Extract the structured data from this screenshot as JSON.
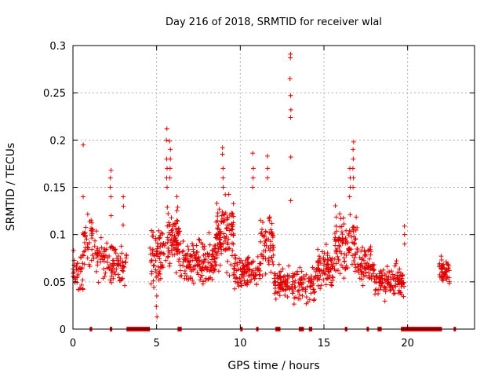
{
  "chart_data": {
    "type": "scatter",
    "title": "Day 216 of 2018, SRMTID for receiver wlal",
    "xlabel": "GPS time / hours",
    "ylabel": "SRMTID / TECUs",
    "xlim": [
      0,
      24
    ],
    "ylim": [
      0,
      0.3
    ],
    "x_ticks": [
      0,
      5,
      10,
      15,
      20
    ],
    "x_tick_labels": [
      "0",
      "5",
      "10",
      "15",
      "20"
    ],
    "y_ticks": [
      0,
      0.05,
      0.1,
      0.15,
      0.2,
      0.25,
      0.3
    ],
    "y_tick_labels": [
      "0",
      "0.05",
      "0.1",
      "0.15",
      "0.2",
      "0.25",
      "0.3"
    ],
    "grid": true,
    "marker": "+",
    "color": "#e00000",
    "clusters": [
      {
        "x": [
          0.0,
          0.6
        ],
        "y_base": 0.06,
        "y_spread": 0.03,
        "count": 40
      },
      {
        "x": [
          0.6,
          1.4
        ],
        "y_base": 0.09,
        "y_spread": 0.04,
        "count": 45
      },
      {
        "x": [
          1.4,
          2.2
        ],
        "y_base": 0.075,
        "y_spread": 0.03,
        "count": 40
      },
      {
        "x": [
          2.2,
          3.2
        ],
        "y_base": 0.07,
        "y_spread": 0.035,
        "count": 60
      },
      {
        "x": [
          4.6,
          5.6
        ],
        "y_base": 0.08,
        "y_spread": 0.04,
        "count": 70
      },
      {
        "x": [
          5.6,
          6.4
        ],
        "y_base": 0.1,
        "y_spread": 0.05,
        "count": 80
      },
      {
        "x": [
          6.4,
          8.5
        ],
        "y_base": 0.07,
        "y_spread": 0.035,
        "count": 150
      },
      {
        "x": [
          8.5,
          9.6
        ],
        "y_base": 0.1,
        "y_spread": 0.05,
        "count": 110
      },
      {
        "x": [
          9.6,
          11.2
        ],
        "y_base": 0.06,
        "y_spread": 0.025,
        "count": 110
      },
      {
        "x": [
          11.2,
          12.0
        ],
        "y_base": 0.09,
        "y_spread": 0.045,
        "count": 60
      },
      {
        "x": [
          12.0,
          13.2
        ],
        "y_base": 0.05,
        "y_spread": 0.025,
        "count": 80
      },
      {
        "x": [
          13.2,
          14.5
        ],
        "y_base": 0.045,
        "y_spread": 0.025,
        "count": 70
      },
      {
        "x": [
          14.5,
          15.6
        ],
        "y_base": 0.065,
        "y_spread": 0.03,
        "count": 80
      },
      {
        "x": [
          15.6,
          17.0
        ],
        "y_base": 0.09,
        "y_spread": 0.045,
        "count": 110
      },
      {
        "x": [
          17.0,
          18.0
        ],
        "y_base": 0.07,
        "y_spread": 0.03,
        "count": 70
      },
      {
        "x": [
          18.0,
          19.8
        ],
        "y_base": 0.05,
        "y_spread": 0.025,
        "count": 120
      },
      {
        "x": [
          21.9,
          22.5
        ],
        "y_base": 0.06,
        "y_spread": 0.02,
        "count": 50
      }
    ],
    "columns": [
      {
        "x": 0.6,
        "y": [
          0.195,
          0.14,
          0.1
        ]
      },
      {
        "x": 2.25,
        "y": [
          0.168,
          0.16,
          0.15,
          0.14,
          0.12
        ]
      },
      {
        "x": 3.0,
        "y": [
          0.14,
          0.13,
          0.11
        ]
      },
      {
        "x": 5.6,
        "y": [
          0.212,
          0.2,
          0.18,
          0.17,
          0.16,
          0.15
        ]
      },
      {
        "x": 5.8,
        "y": [
          0.199,
          0.19,
          0.18,
          0.17,
          0.16
        ]
      },
      {
        "x": 8.95,
        "y": [
          0.192,
          0.185,
          0.17,
          0.16,
          0.15
        ]
      },
      {
        "x": 10.75,
        "y": [
          0.186,
          0.17,
          0.16,
          0.15
        ]
      },
      {
        "x": 11.65,
        "y": [
          0.183,
          0.17,
          0.16
        ]
      },
      {
        "x": 13.0,
        "y": [
          0.291,
          0.287,
          0.265,
          0.247,
          0.232,
          0.224,
          0.182,
          0.136
        ]
      },
      {
        "x": 16.55,
        "y": [
          0.17,
          0.16,
          0.15,
          0.14
        ]
      },
      {
        "x": 16.75,
        "y": [
          0.198,
          0.19,
          0.18,
          0.17,
          0.16,
          0.15
        ]
      },
      {
        "x": 19.8,
        "y": [
          0.109,
          0.1,
          0.09
        ]
      },
      {
        "x": 5.0,
        "y": [
          0.035,
          0.024,
          0.013
        ]
      }
    ],
    "zero_segments": [
      [
        1.0,
        1.15
      ],
      [
        2.2,
        2.35
      ],
      [
        3.2,
        4.6
      ],
      [
        6.25,
        6.5
      ],
      [
        10.0,
        10.1
      ],
      [
        10.95,
        11.05
      ],
      [
        12.1,
        12.4
      ],
      [
        13.5,
        13.8
      ],
      [
        14.1,
        14.3
      ],
      [
        16.25,
        16.4
      ],
      [
        17.55,
        17.65
      ],
      [
        18.2,
        18.45
      ],
      [
        19.6,
        22.05
      ],
      [
        22.75,
        22.85
      ]
    ]
  }
}
